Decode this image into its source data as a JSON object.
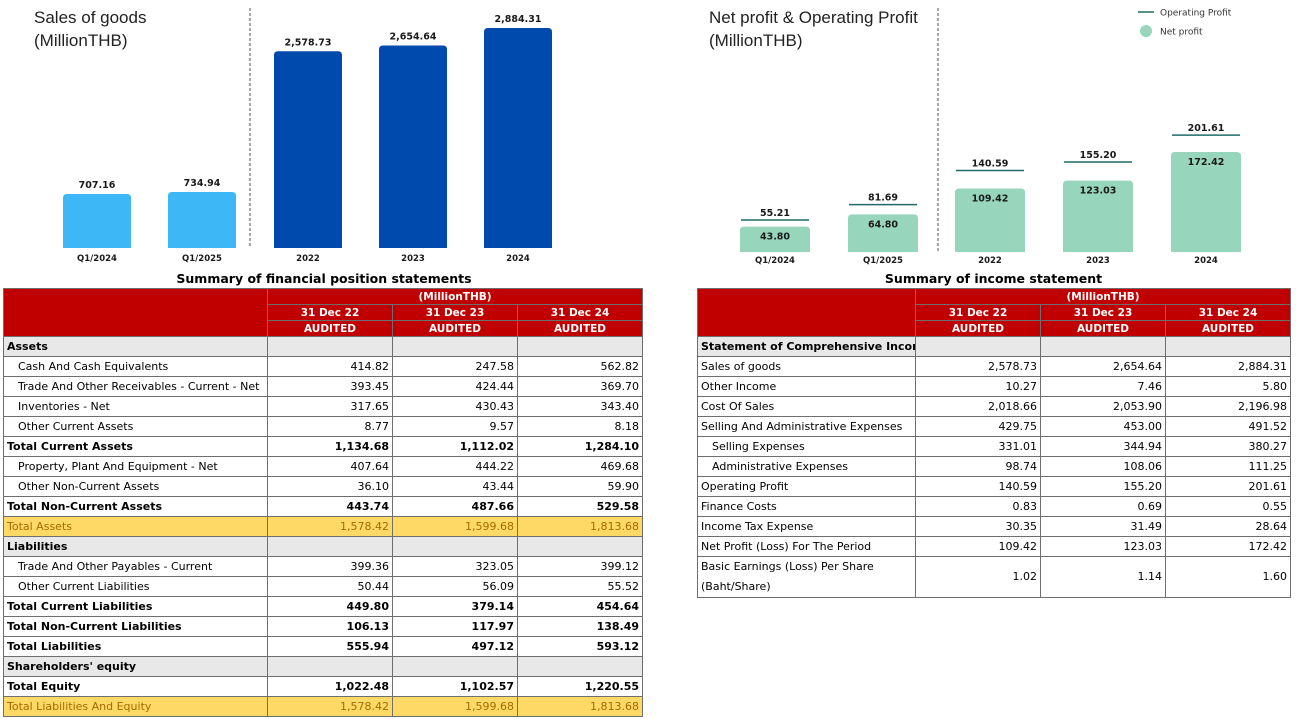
{
  "colors": {
    "sales_light": "#3db7f5",
    "sales_dark": "#004aad",
    "profit_bar": "#97d5bd",
    "op_line": "#1f6b68",
    "header_red": "#c00000",
    "highlight": "#ffd966",
    "section_grey": "#e8e8e8"
  },
  "chart_data": [
    {
      "type": "bar",
      "title": "Sales of goods",
      "subtitle": "(MillionTHB)",
      "categories": [
        "Q1/2024",
        "Q1/2025",
        "2022",
        "2023",
        "2024"
      ],
      "values": [
        707.16,
        734.94,
        2578.73,
        2654.64,
        2884.31
      ],
      "value_labels": [
        "707.16",
        "734.94",
        "2,578.73",
        "2,654.64",
        "2,884.31"
      ],
      "bar_colors": [
        "#3db7f5",
        "#3db7f5",
        "#004aad",
        "#004aad",
        "#004aad"
      ],
      "divider_after": 1,
      "grid": false
    },
    {
      "type": "bar",
      "title": "Net profit & Operating Profit",
      "subtitle": "(MillionTHB)",
      "categories": [
        "Q1/2024",
        "Q1/2025",
        "2022",
        "2023",
        "2024"
      ],
      "series": [
        {
          "name": "Net profit",
          "kind": "bar",
          "values": [
            43.8,
            64.8,
            109.42,
            123.03,
            172.42
          ],
          "labels": [
            "43.80",
            "64.80",
            "109.42",
            "123.03",
            "172.42"
          ]
        },
        {
          "name": "Operating Profit",
          "kind": "marker-line",
          "values": [
            55.21,
            81.69,
            140.59,
            155.2,
            201.61
          ],
          "labels": [
            "55.21",
            "81.69",
            "140.59",
            "155.20",
            "201.61"
          ]
        }
      ],
      "legend_position": "top-right",
      "divider_after": 1,
      "grid": false
    }
  ],
  "position_table": {
    "title": "Summary of financial position statements",
    "unit": "(MillionTHB)",
    "columns": [
      "31 Dec 22",
      "31 Dec 23",
      "31 Dec 24"
    ],
    "status": [
      "AUDITED",
      "AUDITED",
      "AUDITED"
    ],
    "rows": [
      {
        "label": "Assets",
        "style": "sec",
        "values": [
          "",
          "",
          ""
        ]
      },
      {
        "label": "Cash And Cash Equivalents",
        "style": "ind",
        "values": [
          "414.82",
          "247.58",
          "562.82"
        ]
      },
      {
        "label": "Trade And Other Receivables - Current - Net",
        "style": "ind",
        "values": [
          "393.45",
          "424.44",
          "369.70"
        ]
      },
      {
        "label": "Inventories - Net",
        "style": "ind",
        "values": [
          "317.65",
          "430.43",
          "343.40"
        ]
      },
      {
        "label": "Other Current Assets",
        "style": "ind",
        "values": [
          "8.77",
          "9.57",
          "8.18"
        ]
      },
      {
        "label": "Total Current Assets",
        "style": "bold",
        "values": [
          "1,134.68",
          "1,112.02",
          "1,284.10"
        ]
      },
      {
        "label": "Property, Plant And Equipment - Net",
        "style": "ind",
        "values": [
          "407.64",
          "444.22",
          "469.68"
        ]
      },
      {
        "label": "Other Non-Current Assets",
        "style": "ind",
        "values": [
          "36.10",
          "43.44",
          "59.90"
        ]
      },
      {
        "label": "Total Non-Current Assets",
        "style": "bold",
        "values": [
          "443.74",
          "487.66",
          "529.58"
        ]
      },
      {
        "label": "Total Assets",
        "style": "hl",
        "values": [
          "1,578.42",
          "1,599.68",
          "1,813.68"
        ]
      },
      {
        "label": "Liabilities",
        "style": "sec",
        "values": [
          "",
          "",
          ""
        ]
      },
      {
        "label": "Trade And Other Payables - Current",
        "style": "ind",
        "values": [
          "399.36",
          "323.05",
          "399.12"
        ]
      },
      {
        "label": "Other Current Liabilities",
        "style": "ind",
        "values": [
          "50.44",
          "56.09",
          "55.52"
        ]
      },
      {
        "label": "Total Current Liabilities",
        "style": "bold",
        "values": [
          "449.80",
          "379.14",
          "454.64"
        ]
      },
      {
        "label": "Total Non-Current Liabilities",
        "style": "bold",
        "values": [
          "106.13",
          "117.97",
          "138.49"
        ]
      },
      {
        "label": "Total Liabilities",
        "style": "bold",
        "values": [
          "555.94",
          "497.12",
          "593.12"
        ]
      },
      {
        "label": "Shareholders' equity",
        "style": "sec",
        "values": [
          "",
          "",
          ""
        ]
      },
      {
        "label": "Total Equity",
        "style": "bold",
        "values": [
          "1,022.48",
          "1,102.57",
          "1,220.55"
        ]
      },
      {
        "label": "Total Liabilities And Equity",
        "style": "hl",
        "values": [
          "1,578.42",
          "1,599.68",
          "1,813.68"
        ]
      }
    ]
  },
  "income_table": {
    "title": "Summary of income statement",
    "unit": "(MillionTHB)",
    "columns": [
      "31 Dec 22",
      "31 Dec 23",
      "31 Dec 24"
    ],
    "status": [
      "AUDITED",
      "AUDITED",
      "AUDITED"
    ],
    "rows": [
      {
        "label": "Statement of Comprehensive Income",
        "style": "sec",
        "values": [
          "",
          "",
          ""
        ]
      },
      {
        "label": "Sales of goods",
        "style": "",
        "values": [
          "2,578.73",
          "2,654.64",
          "2,884.31"
        ]
      },
      {
        "label": "Other Income",
        "style": "",
        "values": [
          "10.27",
          "7.46",
          "5.80"
        ]
      },
      {
        "label": "Cost Of Sales",
        "style": "",
        "values": [
          "2,018.66",
          "2,053.90",
          "2,196.98"
        ]
      },
      {
        "label": "Selling And Administrative Expenses",
        "style": "",
        "values": [
          "429.75",
          "453.00",
          "491.52"
        ]
      },
      {
        "label": "Selling Expenses",
        "style": "ind",
        "values": [
          "331.01",
          "344.94",
          "380.27"
        ]
      },
      {
        "label": "Administrative Expenses",
        "style": "ind",
        "values": [
          "98.74",
          "108.06",
          "111.25"
        ]
      },
      {
        "label": "Operating Profit",
        "style": "",
        "values": [
          "140.59",
          "155.20",
          "201.61"
        ]
      },
      {
        "label": "Finance Costs",
        "style": "",
        "values": [
          "0.83",
          "0.69",
          "0.55"
        ]
      },
      {
        "label": "Income Tax Expense",
        "style": "",
        "values": [
          "30.35",
          "31.49",
          "28.64"
        ]
      },
      {
        "label": "Net Profit (Loss) For The Period",
        "style": "",
        "values": [
          "109.42",
          "123.03",
          "172.42"
        ]
      },
      {
        "label": "Basic Earnings (Loss) Per Share (Baht/Share)",
        "style": "tall",
        "values": [
          "1.02",
          "1.14",
          "1.60"
        ]
      }
    ]
  }
}
